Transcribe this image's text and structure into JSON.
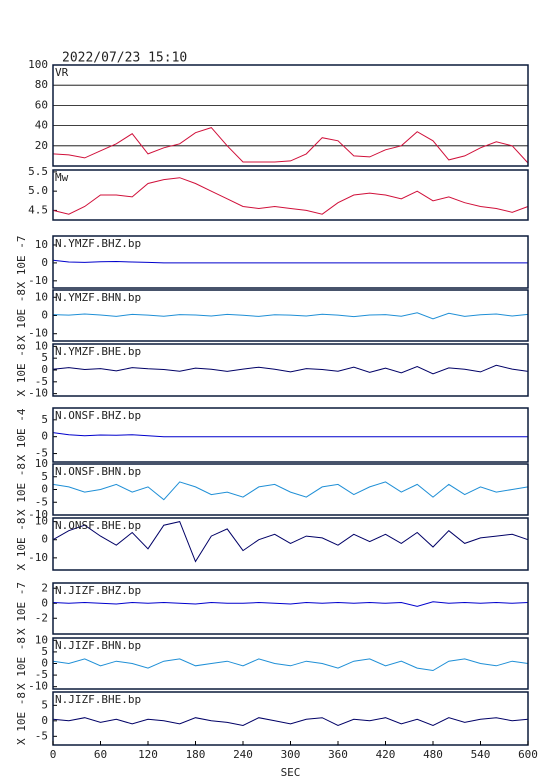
{
  "chart_data": [
    {
      "type": "line",
      "title": "2022/07/23 15:10",
      "label": "VR",
      "color": "#d0103a",
      "grid": true,
      "x": [
        0,
        20,
        40,
        60,
        80,
        100,
        120,
        140,
        160,
        180,
        200,
        220,
        240,
        260,
        280,
        300,
        320,
        340,
        360,
        380,
        400,
        420,
        440,
        460,
        480,
        500,
        520,
        540,
        560,
        580,
        600
      ],
      "values": [
        12,
        11,
        8,
        15,
        22,
        32,
        12,
        18,
        22,
        33,
        38,
        20,
        4,
        4,
        4,
        5,
        12,
        28,
        25,
        10,
        9,
        16,
        20,
        34,
        25,
        6,
        10,
        18,
        24,
        20,
        3
      ],
      "xlim": [
        0,
        600
      ],
      "ylim": [
        0,
        100
      ],
      "yticks": [
        20,
        40,
        60,
        80,
        100
      ]
    },
    {
      "type": "line",
      "label": "Mw",
      "color": "#d0103a",
      "x": [
        0,
        20,
        40,
        60,
        80,
        100,
        120,
        140,
        160,
        180,
        200,
        220,
        240,
        260,
        280,
        300,
        320,
        340,
        360,
        380,
        400,
        420,
        440,
        460,
        480,
        500,
        520,
        540,
        560,
        580,
        600
      ],
      "values": [
        4.5,
        4.4,
        4.6,
        4.9,
        4.9,
        4.85,
        5.2,
        5.3,
        5.35,
        5.2,
        5.0,
        4.8,
        4.6,
        4.55,
        4.6,
        4.55,
        4.5,
        4.4,
        4.7,
        4.9,
        4.95,
        4.9,
        4.8,
        5.0,
        4.75,
        4.85,
        4.7,
        4.6,
        4.55,
        4.45,
        4.6
      ],
      "xlim": [
        0,
        600
      ],
      "ylim": [
        4.25,
        5.55
      ],
      "yticks": [
        4.5,
        {
          "value": 5,
          "label": "5.0"
        },
        5.5
      ]
    },
    {
      "type": "line",
      "label": "N.YMZF.BHZ.bp",
      "ylabel": "X 10E -7",
      "color": "#0000cc",
      "x": [
        0,
        20,
        40,
        60,
        80,
        100,
        120,
        140,
        160,
        180,
        200,
        220,
        240,
        260,
        280,
        300,
        320,
        340,
        360,
        380,
        400,
        420,
        440,
        460,
        480,
        500,
        520,
        540,
        560,
        580,
        600
      ],
      "values": [
        1.5,
        0.5,
        0.3,
        0.6,
        0.8,
        0.5,
        0.3,
        0,
        0,
        0,
        0,
        0,
        0,
        0,
        0,
        0,
        0,
        0,
        0,
        0,
        0,
        0,
        0,
        0,
        0,
        0,
        0,
        0,
        0,
        0,
        0
      ],
      "xlim": [
        0,
        600
      ],
      "ylim": [
        -14,
        15
      ],
      "yticks": [
        10,
        0,
        -10
      ]
    },
    {
      "type": "line",
      "label": "N.YMZF.BHN.bp",
      "ylabel": "X 10E -8",
      "color": "#1f8fd6",
      "x": [
        0,
        20,
        40,
        60,
        80,
        100,
        120,
        140,
        160,
        180,
        200,
        220,
        240,
        260,
        280,
        300,
        320,
        340,
        360,
        380,
        400,
        420,
        440,
        460,
        480,
        500,
        520,
        540,
        560,
        580,
        600
      ],
      "values": [
        0.5,
        0.2,
        0.8,
        0.3,
        -0.5,
        0.6,
        0.2,
        -0.4,
        0.5,
        0.3,
        -0.3,
        0.6,
        0.1,
        -0.5,
        0.4,
        0.2,
        -0.3,
        0.7,
        0.2,
        -0.6,
        0.3,
        0.5,
        -0.4,
        1.5,
        -1.8,
        1.2,
        -0.5,
        0.4,
        0.8,
        -0.3,
        0.6
      ],
      "xlim": [
        0,
        600
      ],
      "ylim": [
        -14,
        14
      ],
      "yticks": [
        10,
        0,
        -10
      ]
    },
    {
      "type": "line",
      "label": "N.YMZF.BHE.bp",
      "ylabel": "X 10E -8",
      "color": "#000066",
      "x": [
        0,
        20,
        40,
        60,
        80,
        100,
        120,
        140,
        160,
        180,
        200,
        220,
        240,
        260,
        280,
        300,
        320,
        340,
        360,
        380,
        400,
        420,
        440,
        460,
        480,
        500,
        520,
        540,
        560,
        580,
        600
      ],
      "values": [
        0.3,
        1.0,
        0.2,
        0.6,
        -0.4,
        1.0,
        0.5,
        0.2,
        -0.5,
        0.8,
        0.3,
        -0.6,
        0.4,
        1.2,
        0.3,
        -0.8,
        0.6,
        0.2,
        -0.5,
        1.2,
        -1.0,
        0.8,
        -1.2,
        1.5,
        -1.6,
        0.9,
        0.3,
        -0.8,
        2.0,
        0.4,
        -0.6
      ],
      "xlim": [
        0,
        600
      ],
      "ylim": [
        -11,
        11
      ],
      "yticks": [
        10,
        5,
        0,
        -5,
        -10
      ]
    },
    {
      "type": "line",
      "label": "N.ONSF.BHZ.bp",
      "ylabel": "X 10E -4",
      "color": "#0000cc",
      "x": [
        0,
        20,
        40,
        60,
        80,
        100,
        120,
        140,
        160,
        180,
        200,
        220,
        240,
        260,
        280,
        300,
        320,
        340,
        360,
        380,
        400,
        420,
        440,
        460,
        480,
        500,
        520,
        540,
        560,
        580,
        600
      ],
      "values": [
        1.2,
        0.6,
        0.3,
        0.5,
        0.4,
        0.6,
        0.3,
        0,
        0,
        0,
        0,
        0,
        0,
        0,
        0,
        0,
        0,
        0,
        0,
        0,
        0,
        0,
        0,
        0,
        0,
        0,
        0,
        0,
        0,
        0,
        0
      ],
      "xlim": [
        0,
        600
      ],
      "ylim": [
        -7.5,
        8.5
      ],
      "yticks": [
        5,
        0,
        -5
      ]
    },
    {
      "type": "line",
      "label": "N.ONSF.BHN.bp",
      "ylabel": "X 10E -8",
      "color": "#1f8fd6",
      "x": [
        0,
        20,
        40,
        60,
        80,
        100,
        120,
        140,
        160,
        180,
        200,
        220,
        240,
        260,
        280,
        300,
        320,
        340,
        360,
        380,
        400,
        420,
        440,
        460,
        480,
        500,
        520,
        540,
        560,
        580,
        600
      ],
      "values": [
        2,
        1,
        -1,
        0,
        2,
        -1,
        1,
        -4,
        3,
        1,
        -2,
        -1,
        -3,
        1,
        2,
        -1,
        -3,
        1,
        2,
        -2,
        1,
        3,
        -1,
        2,
        -3,
        2,
        -2,
        1,
        -1,
        0,
        1
      ],
      "xlim": [
        0,
        600
      ],
      "ylim": [
        -10,
        10
      ],
      "yticks": [
        10,
        5,
        0,
        -5,
        -10
      ]
    },
    {
      "type": "line",
      "label": "N.ONSF.BHE.bp",
      "ylabel": "X 10E -8",
      "color": "#000066",
      "x": [
        0,
        20,
        40,
        60,
        80,
        100,
        120,
        140,
        160,
        180,
        200,
        220,
        240,
        260,
        280,
        300,
        320,
        340,
        360,
        380,
        400,
        420,
        440,
        460,
        480,
        500,
        520,
        540,
        560,
        580,
        600
      ],
      "values": [
        0,
        5,
        8,
        2,
        -3,
        4,
        -5,
        8,
        10,
        -12,
        2,
        6,
        -6,
        0,
        3,
        -2,
        2,
        1,
        -3,
        3,
        -1,
        3,
        -2,
        4,
        -4,
        5,
        -2,
        1,
        2,
        3,
        0
      ],
      "xlim": [
        0,
        600
      ],
      "ylim": [
        -16.7,
        12
      ],
      "yticks": [
        10,
        0,
        -10
      ]
    },
    {
      "type": "line",
      "label": "N.JIZF.BHZ.bp",
      "ylabel": "X 10E -7",
      "color": "#0000cc",
      "x": [
        0,
        20,
        40,
        60,
        80,
        100,
        120,
        140,
        160,
        180,
        200,
        220,
        240,
        260,
        280,
        300,
        320,
        340,
        360,
        380,
        400,
        420,
        440,
        460,
        480,
        500,
        520,
        540,
        560,
        580,
        600
      ],
      "values": [
        0.1,
        0,
        0.1,
        0,
        -0.1,
        0.1,
        0,
        0.1,
        0,
        -0.1,
        0.1,
        0,
        0,
        0.1,
        0,
        -0.1,
        0.1,
        0,
        0.1,
        0,
        0.1,
        0,
        0.1,
        -0.4,
        0.2,
        0,
        0.1,
        0,
        0.1,
        0,
        0.1
      ],
      "xlim": [
        0,
        600
      ],
      "ylim": [
        -4.1,
        2.7
      ],
      "yticks": [
        2,
        0,
        -2
      ]
    },
    {
      "type": "line",
      "label": "N.JIZF.BHN.bp",
      "ylabel": "X 10E -8",
      "color": "#1f8fd6",
      "x": [
        0,
        20,
        40,
        60,
        80,
        100,
        120,
        140,
        160,
        180,
        200,
        220,
        240,
        260,
        280,
        300,
        320,
        340,
        360,
        380,
        400,
        420,
        440,
        460,
        480,
        500,
        520,
        540,
        560,
        580,
        600
      ],
      "values": [
        1,
        0,
        2,
        -1,
        1,
        0,
        -2,
        1,
        2,
        -1,
        0,
        1,
        -1,
        2,
        0,
        -1,
        1,
        0,
        -2,
        1,
        2,
        -1,
        1,
        -2,
        -3,
        1,
        2,
        0,
        -1,
        1,
        0
      ],
      "xlim": [
        0,
        600
      ],
      "ylim": [
        -11,
        11
      ],
      "yticks": [
        10,
        5,
        0,
        -5,
        -10
      ]
    },
    {
      "type": "line",
      "label": "N.JIZF.BHE.bp",
      "ylabel": "X 10E -8",
      "color": "#000066",
      "x": [
        0,
        20,
        40,
        60,
        80,
        100,
        120,
        140,
        160,
        180,
        200,
        220,
        240,
        260,
        280,
        300,
        320,
        340,
        360,
        380,
        400,
        420,
        440,
        460,
        480,
        500,
        520,
        540,
        560,
        580,
        600
      ],
      "values": [
        0.5,
        0,
        1,
        -0.5,
        0.5,
        -1,
        0.5,
        0,
        -1,
        1,
        0,
        -0.5,
        -1.5,
        1,
        0,
        -1,
        0.5,
        1,
        -1.5,
        0.5,
        0,
        1,
        -1,
        0.5,
        -1.5,
        1,
        -0.5,
        0.5,
        1,
        0,
        0.5
      ],
      "xlim": [
        0,
        600
      ],
      "ylim": [
        -7.8,
        9.3
      ],
      "yticks": [
        5,
        0,
        -5
      ],
      "xticks": [
        0,
        60,
        120,
        180,
        240,
        300,
        360,
        420,
        480,
        540,
        600
      ],
      "xlabel": "SEC"
    }
  ]
}
